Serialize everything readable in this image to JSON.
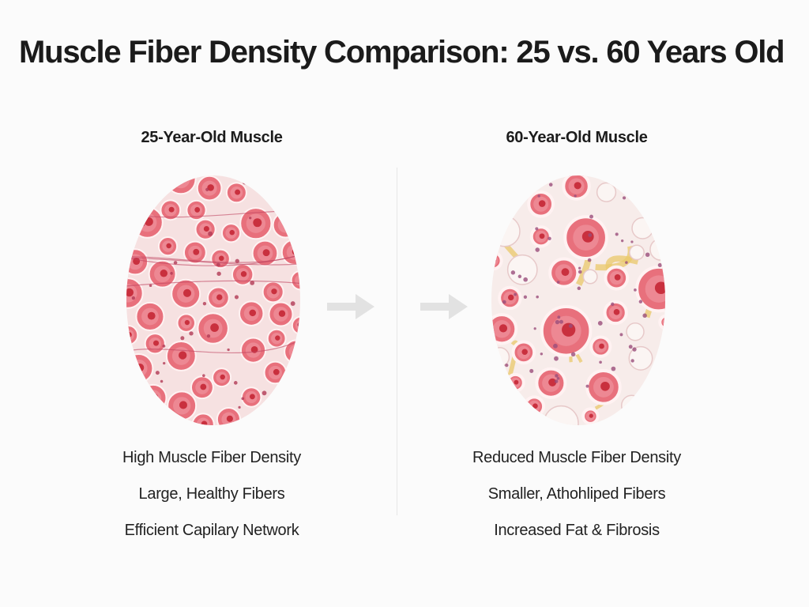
{
  "title": "Muscle Fiber Density Comparison: 25 vs. 60 Years Old",
  "panels": [
    {
      "heading": "25-Year-Old Muscle",
      "captions": [
        "High Muscle Fiber Density",
        "Large, Healthy Fibers",
        "Efficient Capilary Network"
      ]
    },
    {
      "heading": "60-Year-Old Muscle",
      "captions": [
        "Reduced Muscle Fiber Density",
        "Smaller, Athohliped Fibers",
        "Increased Fat & Fibrosis"
      ]
    }
  ],
  "icons": {
    "arrow_left": "arrow-right-icon",
    "arrow_right": "arrow-right-icon"
  },
  "colors": {
    "fiber_fill": "#e8707c",
    "fiber_core": "#c9303e",
    "fat": "#e9c86a",
    "arrow": "#e2e2e2"
  }
}
